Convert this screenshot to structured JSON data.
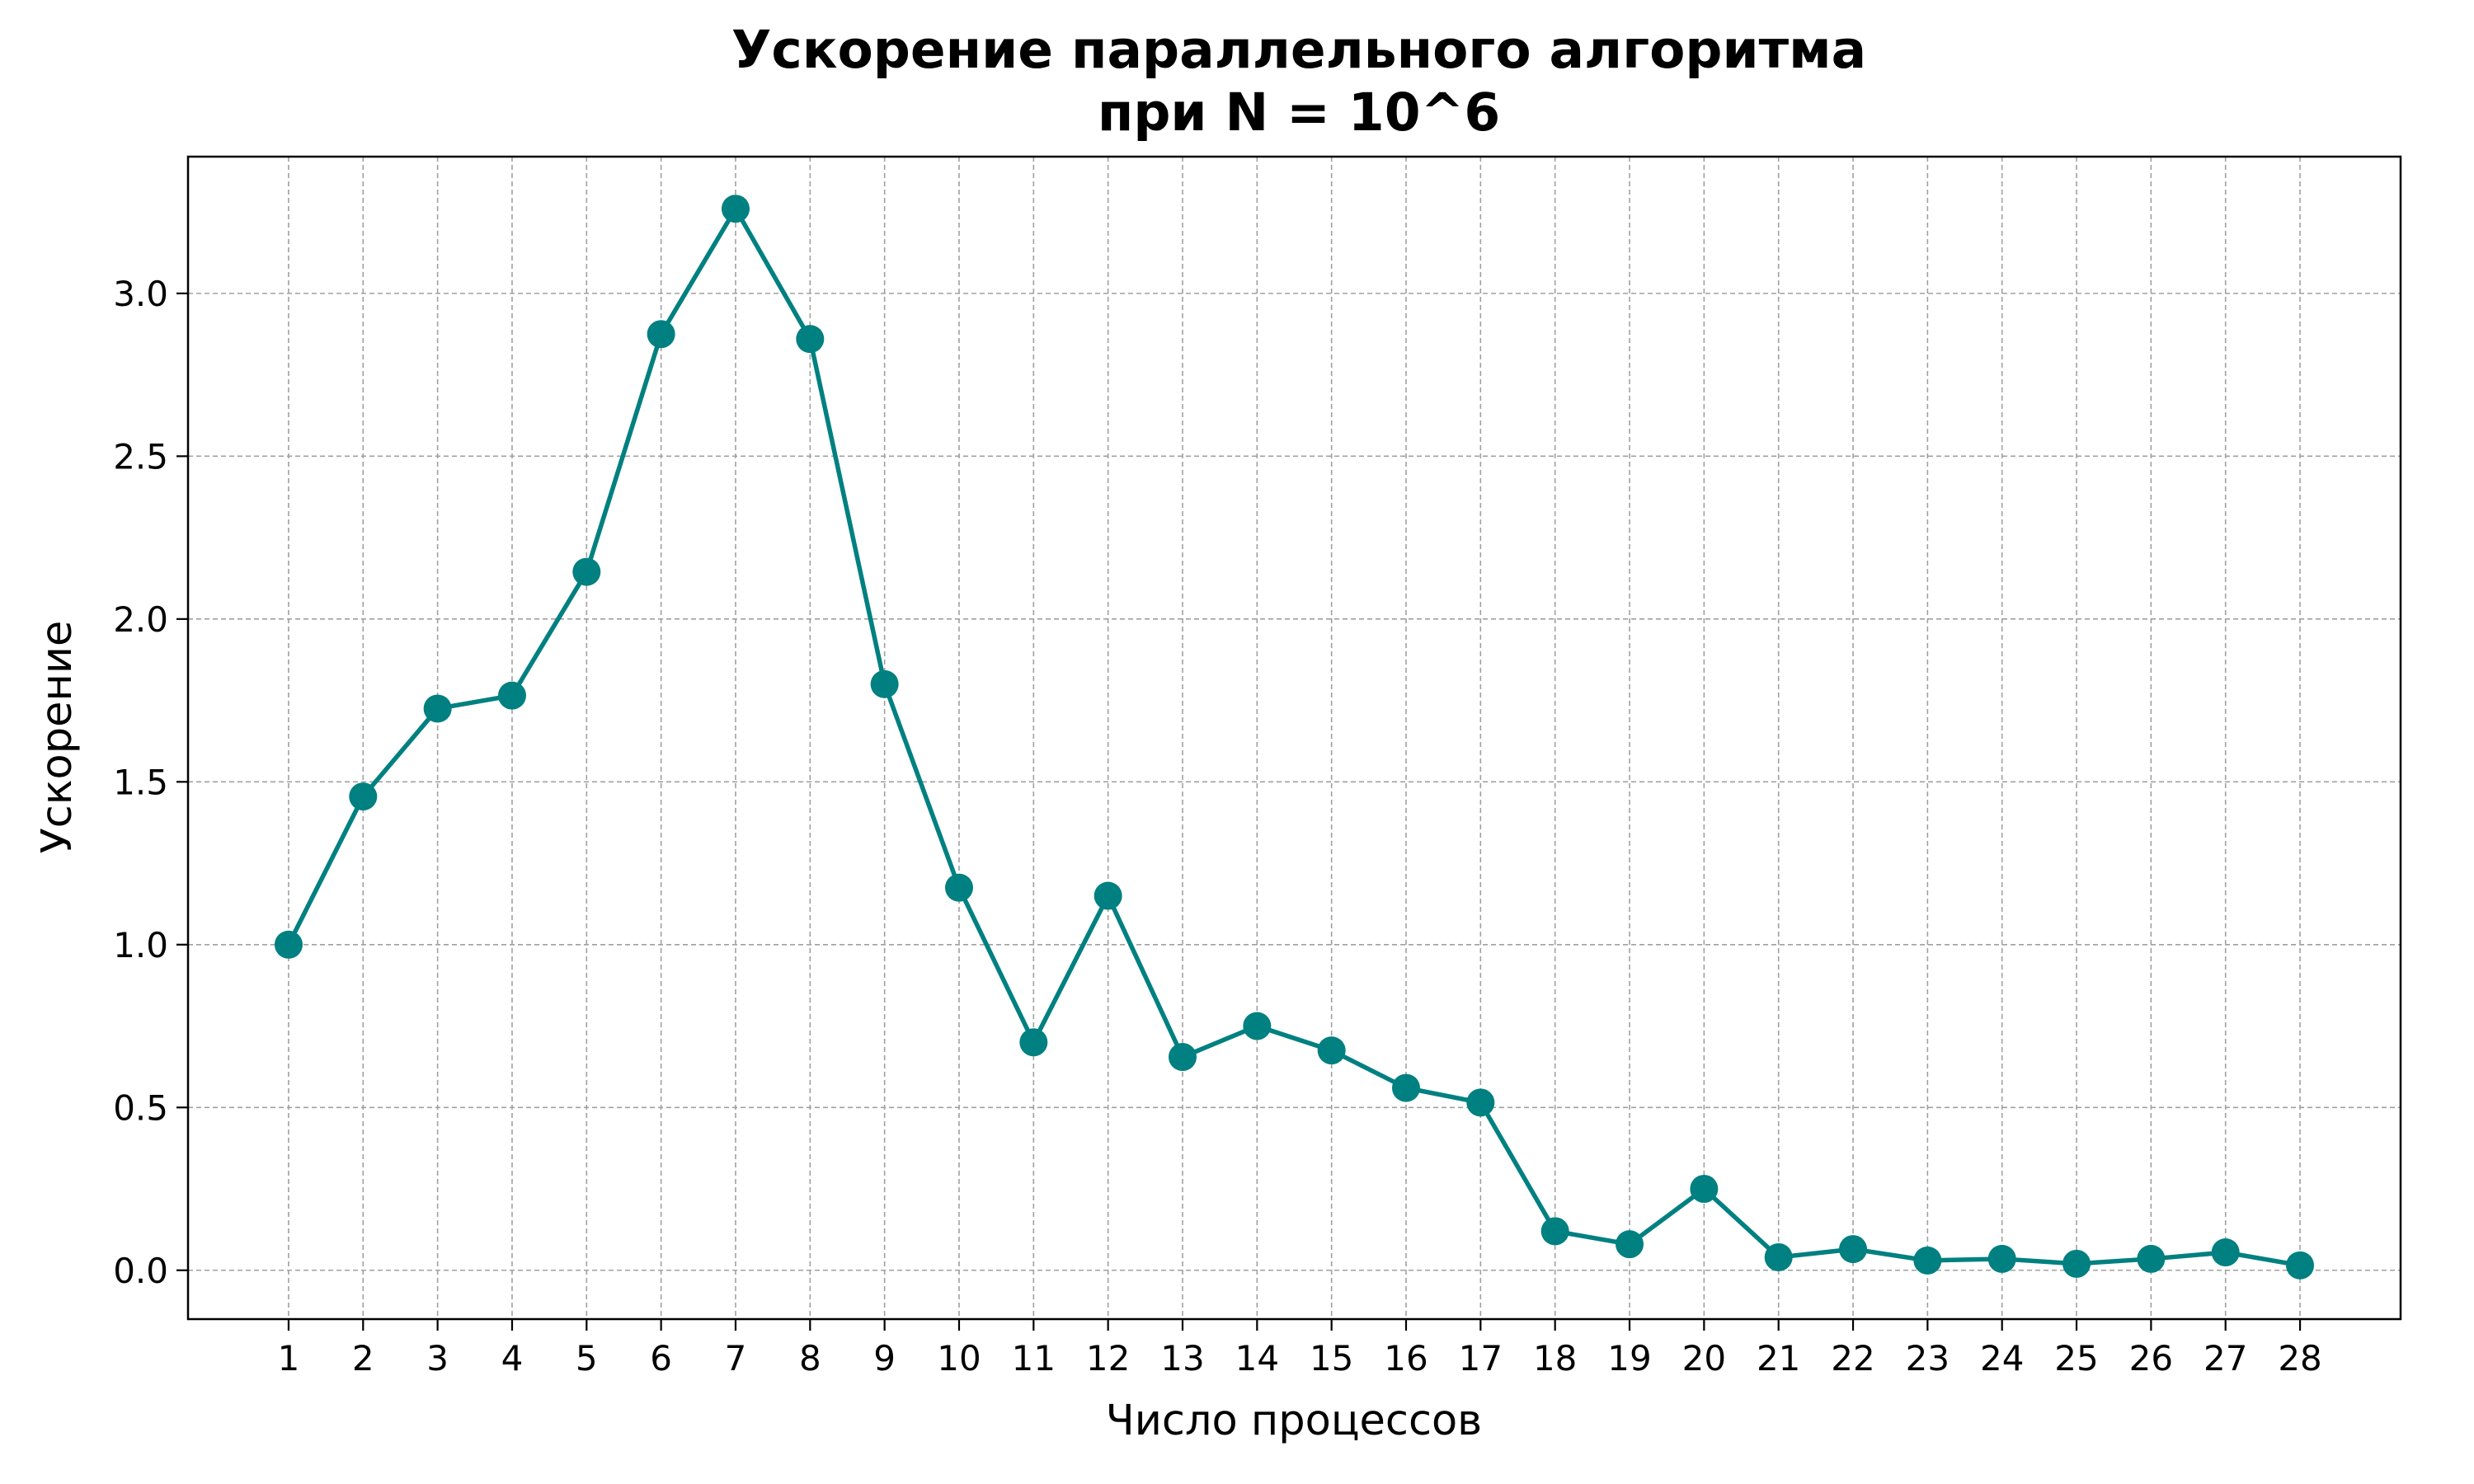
{
  "chart_data": {
    "type": "line",
    "title": "Ускорение параллельного алгоритма",
    "subtitle": "при N = 10^6",
    "xlabel": "Число процессов",
    "ylabel": "Ускорение",
    "x": [
      1,
      2,
      3,
      4,
      5,
      6,
      7,
      8,
      9,
      10,
      11,
      12,
      13,
      14,
      15,
      16,
      17,
      18,
      19,
      20,
      21,
      22,
      23,
      24,
      25,
      26,
      27,
      28
    ],
    "series": [
      {
        "values": [
          1.0,
          1.455,
          1.725,
          1.765,
          2.145,
          2.875,
          3.26,
          2.86,
          1.8,
          1.175,
          0.7,
          1.15,
          0.655,
          0.75,
          0.675,
          0.56,
          0.515,
          0.12,
          0.08,
          0.25,
          0.04,
          0.065,
          0.03,
          0.035,
          0.02,
          0.035,
          0.055,
          0.015
        ],
        "color": "#008080"
      }
    ],
    "xlim": [
      -0.35,
      29.35
    ],
    "ylim": [
      -0.15,
      3.42
    ],
    "xticks": [
      1,
      2,
      3,
      4,
      5,
      6,
      7,
      8,
      9,
      10,
      11,
      12,
      13,
      14,
      15,
      16,
      17,
      18,
      19,
      20,
      21,
      22,
      23,
      24,
      25,
      26,
      27,
      28
    ],
    "yticks": [
      0.0,
      0.5,
      1.0,
      1.5,
      2.0,
      2.5,
      3.0
    ],
    "ytick_labels": [
      "0.0",
      "0.5",
      "1.0",
      "1.5",
      "2.0",
      "2.5",
      "3.0"
    ],
    "grid": true,
    "grid_color": "#a0a0a0",
    "marker": "circle"
  }
}
